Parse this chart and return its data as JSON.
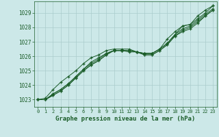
{
  "xlabel": "Graphe pression niveau de la mer (hPa)",
  "xlim": [
    -0.5,
    23.5
  ],
  "ylim": [
    1022.5,
    1029.8
  ],
  "yticks": [
    1023,
    1024,
    1025,
    1026,
    1027,
    1028,
    1029
  ],
  "xticks": [
    0,
    1,
    2,
    3,
    4,
    5,
    6,
    7,
    8,
    9,
    10,
    11,
    12,
    13,
    14,
    15,
    16,
    17,
    18,
    19,
    20,
    21,
    22,
    23
  ],
  "bg_color": "#cce8e8",
  "grid_color": "#aacccc",
  "line_color": "#1a5c28",
  "lines": [
    [
      1023.0,
      1023.0,
      1023.4,
      1023.7,
      1024.1,
      1024.6,
      1025.1,
      1025.6,
      1025.9,
      1026.2,
      1026.4,
      1026.4,
      1026.4,
      1026.3,
      1026.2,
      1026.2,
      1026.5,
      1026.9,
      1027.5,
      1028.1,
      1028.2,
      1028.6,
      1029.0,
      1029.5
    ],
    [
      1023.0,
      1023.0,
      1023.4,
      1023.7,
      1024.1,
      1024.6,
      1025.1,
      1025.5,
      1025.8,
      1026.2,
      1026.4,
      1026.4,
      1026.4,
      1026.3,
      1026.2,
      1026.2,
      1026.5,
      1026.9,
      1027.5,
      1027.9,
      1028.1,
      1028.5,
      1028.9,
      1029.3
    ],
    [
      1023.0,
      1023.0,
      1023.3,
      1023.6,
      1024.0,
      1024.5,
      1025.0,
      1025.4,
      1025.7,
      1026.1,
      1026.4,
      1026.4,
      1026.4,
      1026.3,
      1026.1,
      1026.1,
      1026.4,
      1026.8,
      1027.4,
      1027.8,
      1028.0,
      1028.4,
      1028.8,
      1029.2
    ],
    [
      1023.0,
      1023.0,
      1023.3,
      1023.6,
      1024.0,
      1024.5,
      1025.0,
      1025.4,
      1025.7,
      1026.1,
      1026.4,
      1026.4,
      1026.3,
      1026.3,
      1026.1,
      1026.1,
      1026.4,
      1026.8,
      1027.4,
      1027.7,
      1027.9,
      1028.3,
      1028.8,
      1029.2
    ],
    [
      1023.0,
      1023.1,
      1023.7,
      1024.2,
      1024.6,
      1025.0,
      1025.5,
      1025.9,
      1026.1,
      1026.4,
      1026.5,
      1026.5,
      1026.5,
      1026.3,
      1026.2,
      1026.2,
      1026.5,
      1027.2,
      1027.7,
      1028.1,
      1028.2,
      1028.8,
      1029.2,
      1029.5
    ]
  ]
}
